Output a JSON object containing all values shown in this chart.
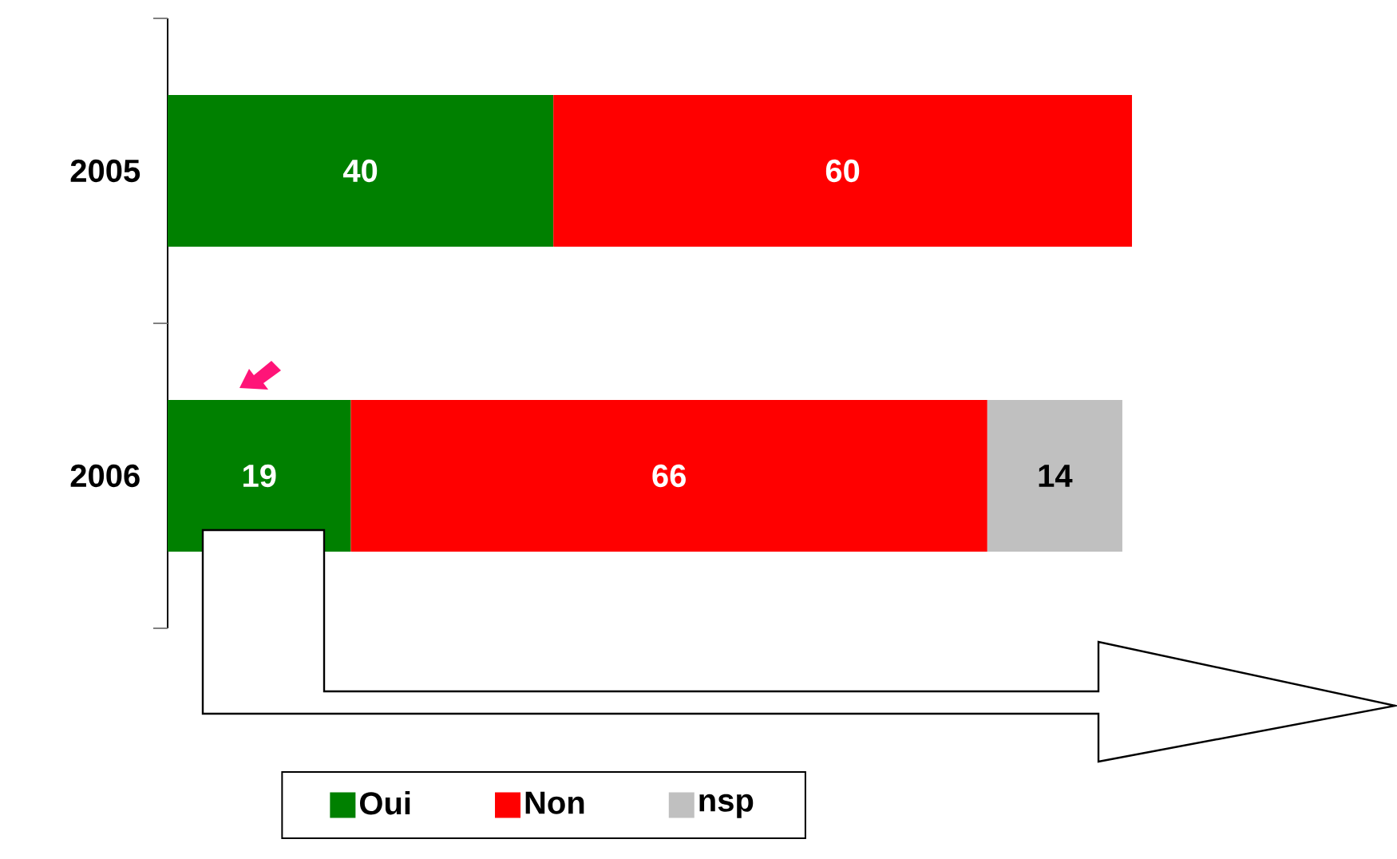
{
  "chart_data": {
    "type": "bar",
    "orientation": "horizontal",
    "stacked": true,
    "data_labels": true,
    "legend": "bottom",
    "categories": [
      "2005",
      "2006"
    ],
    "series": [
      {
        "name": "Oui",
        "color": "#008000",
        "values": [
          40,
          19
        ]
      },
      {
        "name": "Non",
        "color": "#ff0000",
        "values": [
          60,
          66
        ]
      },
      {
        "name": "nsp",
        "color": "#c0c0c0",
        "values": [
          null,
          14
        ]
      }
    ]
  }
}
